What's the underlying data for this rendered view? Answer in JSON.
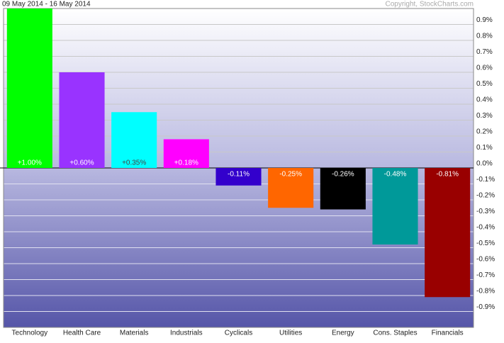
{
  "chart_data": {
    "type": "bar",
    "title": "09 May 2014 - 16 May 2014",
    "source": "Copyright, StockCharts.com",
    "categories": [
      "Technology",
      "Health Care",
      "Materials",
      "Industrials",
      "Cyclicals",
      "Utilities",
      "Energy",
      "Cons. Staples",
      "Financials"
    ],
    "values": [
      1.0,
      0.6,
      0.35,
      0.18,
      -0.11,
      -0.25,
      -0.26,
      -0.48,
      -0.81
    ],
    "value_labels": [
      "+1.00%",
      "+0.60%",
      "+0.35%",
      "+0.18%",
      "-0.11%",
      "-0.25%",
      "-0.26%",
      "-0.48%",
      "-0.81%"
    ],
    "colors": [
      "#00ff00",
      "#9933ff",
      "#00ffff",
      "#ff00ff",
      "#3300cc",
      "#ff6600",
      "#000000",
      "#009999",
      "#990000"
    ],
    "ylim": [
      -1.0,
      1.0
    ],
    "yticks": [
      {
        "value": 0.9,
        "label": "0.9%"
      },
      {
        "value": 0.8,
        "label": "0.8%"
      },
      {
        "value": 0.7,
        "label": "0.7%"
      },
      {
        "value": 0.6,
        "label": "0.6%"
      },
      {
        "value": 0.5,
        "label": "0.5%"
      },
      {
        "value": 0.4,
        "label": "0.4%"
      },
      {
        "value": 0.3,
        "label": "0.3%"
      },
      {
        "value": 0.2,
        "label": "0.2%"
      },
      {
        "value": 0.1,
        "label": "0.1%"
      },
      {
        "value": 0.0,
        "label": "0.0%"
      },
      {
        "value": -0.1,
        "label": "-0.1%"
      },
      {
        "value": -0.2,
        "label": "-0.2%"
      },
      {
        "value": -0.3,
        "label": "-0.3%"
      },
      {
        "value": -0.4,
        "label": "-0.4%"
      },
      {
        "value": -0.5,
        "label": "-0.5%"
      },
      {
        "value": -0.6,
        "label": "-0.6%"
      },
      {
        "value": -0.7,
        "label": "-0.7%"
      },
      {
        "value": -0.8,
        "label": "-0.8%"
      },
      {
        "value": -0.9,
        "label": "-0.9%"
      }
    ],
    "grid": true
  }
}
